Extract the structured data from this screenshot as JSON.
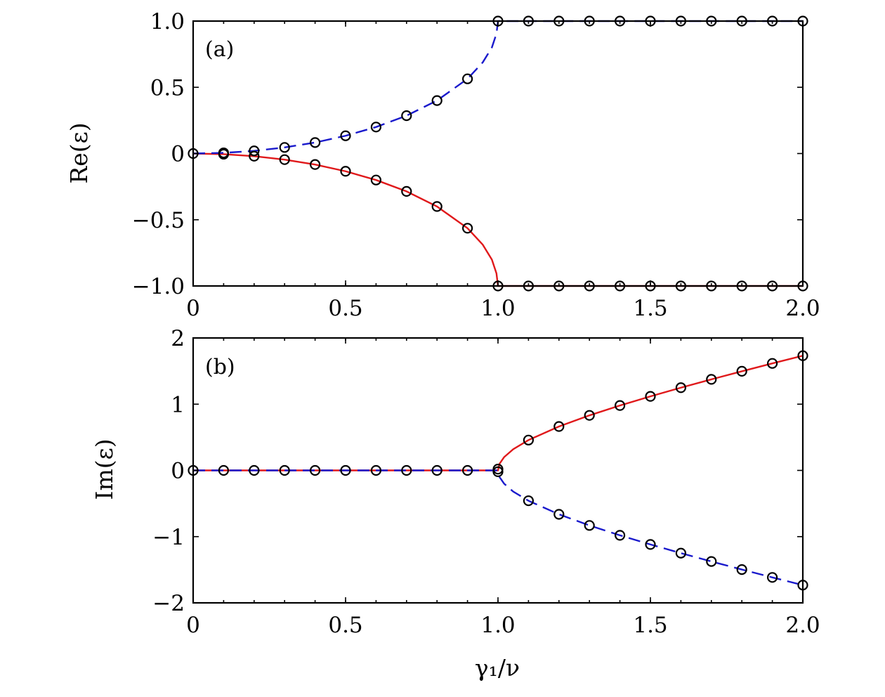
{
  "colors": {
    "solid_branch": "#e0191b",
    "dashed_branch": "#1a1acc",
    "markers": "#000000",
    "axes": "#000000"
  },
  "chart_data": [
    {
      "type": "line",
      "panel_label": "(a)",
      "ylabel": "Re(ε)",
      "xlabel": "",
      "xlim": [
        0,
        2.0
      ],
      "ylim": [
        -1.0,
        1.0
      ],
      "xticks": [
        0,
        0.5,
        1.0,
        1.5,
        2.0
      ],
      "xtick_labels": [
        "0",
        "0.5",
        "1.0",
        "1.5",
        "2.0"
      ],
      "yticks": [
        1.0,
        0.5,
        0,
        -0.5,
        -1.0
      ],
      "ytick_labels": [
        "1.0",
        "0.5",
        "0",
        "−0.5",
        "−1.0"
      ],
      "grid": false,
      "legend": "none",
      "series": [
        {
          "style": "solid",
          "color": "#e0191b",
          "x": [
            0,
            0.1,
            0.2,
            0.3,
            0.4,
            0.5,
            0.6,
            0.7,
            0.8,
            0.9,
            0.95,
            0.98,
            0.995,
            1.0,
            1.1,
            1.2,
            1.3,
            1.4,
            1.5,
            1.6,
            1.7,
            1.8,
            1.9,
            2.0
          ],
          "y": [
            0,
            -0.005,
            -0.02,
            -0.046,
            -0.083,
            -0.134,
            -0.2,
            -0.286,
            -0.4,
            -0.564,
            -0.688,
            -0.801,
            -0.905,
            -1.0,
            -1.0,
            -1.0,
            -1.0,
            -1.0,
            -1.0,
            -1.0,
            -1.0,
            -1.0,
            -1.0,
            -1.0
          ]
        },
        {
          "style": "dashed",
          "color": "#1a1acc",
          "x": [
            0,
            0.1,
            0.2,
            0.3,
            0.4,
            0.5,
            0.6,
            0.7,
            0.8,
            0.9,
            0.95,
            0.98,
            0.995,
            1.0,
            1.1,
            1.2,
            1.3,
            1.4,
            1.5,
            1.6,
            1.7,
            1.8,
            1.9,
            2.0
          ],
          "y": [
            0,
            0.005,
            0.02,
            0.046,
            0.083,
            0.134,
            0.2,
            0.286,
            0.4,
            0.564,
            0.688,
            0.801,
            0.905,
            1.0,
            1.0,
            1.0,
            1.0,
            1.0,
            1.0,
            1.0,
            1.0,
            1.0,
            1.0,
            1.0
          ]
        }
      ],
      "markers": {
        "shape": "open-circle",
        "points": [
          [
            0,
            0
          ],
          [
            0.1,
            0.005
          ],
          [
            0.1,
            -0.005
          ],
          [
            0.2,
            0.02
          ],
          [
            0.2,
            -0.02
          ],
          [
            0.3,
            0.046
          ],
          [
            0.3,
            -0.046
          ],
          [
            0.4,
            0.083
          ],
          [
            0.4,
            -0.083
          ],
          [
            0.5,
            0.134
          ],
          [
            0.5,
            -0.134
          ],
          [
            0.6,
            0.2
          ],
          [
            0.6,
            -0.2
          ],
          [
            0.7,
            0.286
          ],
          [
            0.7,
            -0.286
          ],
          [
            0.8,
            0.4
          ],
          [
            0.8,
            -0.4
          ],
          [
            0.9,
            0.564
          ],
          [
            0.9,
            -0.564
          ],
          [
            1.0,
            1.0
          ],
          [
            1.0,
            -1.0
          ],
          [
            1.1,
            1.0
          ],
          [
            1.1,
            -1.0
          ],
          [
            1.2,
            1.0
          ],
          [
            1.2,
            -1.0
          ],
          [
            1.3,
            1.0
          ],
          [
            1.3,
            -1.0
          ],
          [
            1.4,
            1.0
          ],
          [
            1.4,
            -1.0
          ],
          [
            1.5,
            1.0
          ],
          [
            1.5,
            -1.0
          ],
          [
            1.6,
            1.0
          ],
          [
            1.6,
            -1.0
          ],
          [
            1.7,
            1.0
          ],
          [
            1.7,
            -1.0
          ],
          [
            1.8,
            1.0
          ],
          [
            1.8,
            -1.0
          ],
          [
            1.9,
            1.0
          ],
          [
            1.9,
            -1.0
          ],
          [
            2.0,
            1.0
          ],
          [
            2.0,
            -1.0
          ]
        ]
      }
    },
    {
      "type": "line",
      "panel_label": "(b)",
      "ylabel": "Im(ε)",
      "xlabel": "γ₁/ν",
      "xlim": [
        0,
        2.0
      ],
      "ylim": [
        -2,
        2
      ],
      "xticks": [
        0,
        0.5,
        1.0,
        1.5,
        2.0
      ],
      "xtick_labels": [
        "0",
        "0.5",
        "1.0",
        "1.5",
        "2.0"
      ],
      "yticks": [
        2,
        1,
        0,
        -1,
        -2
      ],
      "ytick_labels": [
        "2",
        "1",
        "0",
        "−1",
        "−2"
      ],
      "grid": false,
      "legend": "none",
      "series": [
        {
          "style": "solid",
          "color": "#e0191b",
          "x": [
            0,
            0.5,
            1.0,
            1.005,
            1.02,
            1.05,
            1.1,
            1.2,
            1.3,
            1.4,
            1.5,
            1.6,
            1.7,
            1.8,
            1.9,
            2.0
          ],
          "y": [
            0,
            0,
            0,
            0.1,
            0.2,
            0.32,
            0.458,
            0.663,
            0.831,
            0.98,
            1.118,
            1.249,
            1.375,
            1.497,
            1.616,
            1.732
          ]
        },
        {
          "style": "dashed",
          "color": "#1a1acc",
          "x": [
            0,
            0.5,
            1.0,
            1.005,
            1.02,
            1.05,
            1.1,
            1.2,
            1.3,
            1.4,
            1.5,
            1.6,
            1.7,
            1.8,
            1.9,
            2.0
          ],
          "y": [
            0,
            0,
            0,
            -0.1,
            -0.2,
            -0.32,
            -0.458,
            -0.663,
            -0.831,
            -0.98,
            -1.118,
            -1.249,
            -1.375,
            -1.497,
            -1.616,
            -1.732
          ]
        }
      ],
      "markers": {
        "shape": "open-circle",
        "points": [
          [
            0,
            0
          ],
          [
            0.1,
            0
          ],
          [
            0.2,
            0
          ],
          [
            0.3,
            0
          ],
          [
            0.4,
            0
          ],
          [
            0.5,
            0
          ],
          [
            0.6,
            0
          ],
          [
            0.7,
            0
          ],
          [
            0.8,
            0
          ],
          [
            0.9,
            0
          ],
          [
            1.0,
            0.02
          ],
          [
            1.0,
            -0.02
          ],
          [
            1.1,
            0.458
          ],
          [
            1.1,
            -0.458
          ],
          [
            1.2,
            0.663
          ],
          [
            1.2,
            -0.663
          ],
          [
            1.3,
            0.831
          ],
          [
            1.3,
            -0.831
          ],
          [
            1.4,
            0.98
          ],
          [
            1.4,
            -0.98
          ],
          [
            1.5,
            1.118
          ],
          [
            1.5,
            -1.118
          ],
          [
            1.6,
            1.249
          ],
          [
            1.6,
            -1.249
          ],
          [
            1.7,
            1.375
          ],
          [
            1.7,
            -1.375
          ],
          [
            1.8,
            1.497
          ],
          [
            1.8,
            -1.497
          ],
          [
            1.9,
            1.616
          ],
          [
            1.9,
            -1.616
          ],
          [
            2.0,
            1.732
          ],
          [
            2.0,
            -1.732
          ]
        ]
      }
    }
  ]
}
